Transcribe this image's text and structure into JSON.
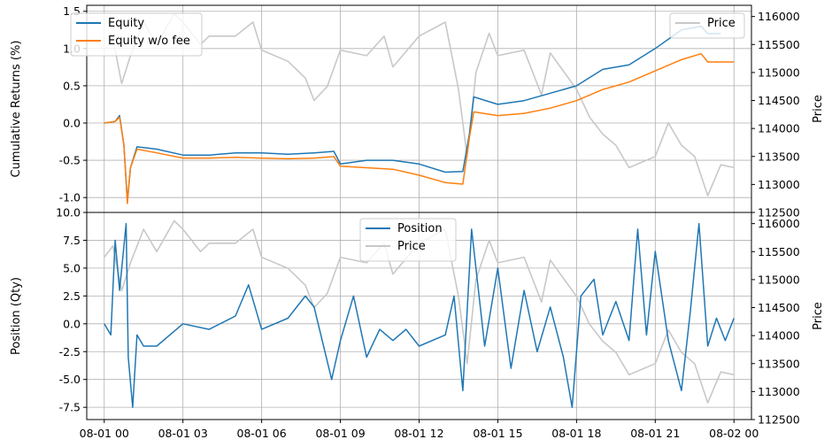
{
  "colors": {
    "equity": "#1f77b4",
    "equity_nofee": "#ff7f0e",
    "position": "#1f77b4",
    "price": "#c8c8c8",
    "grid": "#b0b0b0"
  },
  "chart_data": [
    {
      "type": "line",
      "ylabel": "Cumulative Returns (%)",
      "y2label": "Price",
      "xlim": [
        "07-31 23:20",
        "08-02 00:40"
      ],
      "ylim": [
        -1.2,
        1.58
      ],
      "y2lim": [
        112500,
        116200
      ],
      "yticks": [
        -1.0,
        -0.5,
        0.0,
        0.5,
        1.0,
        1.5
      ],
      "y2ticks": [
        112500,
        113000,
        113500,
        114000,
        114500,
        115000,
        115500,
        116000
      ],
      "grid": true,
      "legend": "upper-left",
      "legend2": "upper-right",
      "series": [
        {
          "name": "Equity",
          "axis": "left",
          "color": "#1f77b4",
          "points": [
            [
              "08-01 00:00",
              0.0
            ],
            [
              "08-01 00:25",
              0.02
            ],
            [
              "08-01 00:35",
              0.1
            ],
            [
              "08-01 00:45",
              -0.3
            ],
            [
              "08-01 00:53",
              -1.05
            ],
            [
              "08-01 01:00",
              -0.6
            ],
            [
              "08-01 01:15",
              -0.32
            ],
            [
              "08-01 02:00",
              -0.35
            ],
            [
              "08-01 03:00",
              -0.43
            ],
            [
              "08-01 04:00",
              -0.43
            ],
            [
              "08-01 05:00",
              -0.4
            ],
            [
              "08-01 06:00",
              -0.4
            ],
            [
              "08-01 07:00",
              -0.42
            ],
            [
              "08-01 08:00",
              -0.4
            ],
            [
              "08-01 08:45",
              -0.38
            ],
            [
              "08-01 09:00",
              -0.55
            ],
            [
              "08-01 10:00",
              -0.5
            ],
            [
              "08-01 11:00",
              -0.5
            ],
            [
              "08-01 12:00",
              -0.55
            ],
            [
              "08-01 13:00",
              -0.66
            ],
            [
              "08-01 13:40",
              -0.65
            ],
            [
              "08-01 13:55",
              -0.15
            ],
            [
              "08-01 14:05",
              0.35
            ],
            [
              "08-01 15:00",
              0.25
            ],
            [
              "08-01 16:00",
              0.3
            ],
            [
              "08-01 17:00",
              0.4
            ],
            [
              "08-01 18:00",
              0.5
            ],
            [
              "08-01 19:00",
              0.72
            ],
            [
              "08-01 20:00",
              0.78
            ],
            [
              "08-01 21:00",
              1.0
            ],
            [
              "08-01 22:00",
              1.25
            ],
            [
              "08-01 22:45",
              1.3
            ],
            [
              "08-01 23:00",
              1.2
            ],
            [
              "08-01 23:30",
              1.2
            ]
          ]
        },
        {
          "name": "Equity w/o fee",
          "axis": "left",
          "color": "#ff7f0e",
          "points": [
            [
              "08-01 00:00",
              0.0
            ],
            [
              "08-01 00:25",
              0.02
            ],
            [
              "08-01 00:35",
              0.08
            ],
            [
              "08-01 00:45",
              -0.3
            ],
            [
              "08-01 00:53",
              -1.08
            ],
            [
              "08-01 01:00",
              -0.6
            ],
            [
              "08-01 01:15",
              -0.35
            ],
            [
              "08-01 02:00",
              -0.4
            ],
            [
              "08-01 03:00",
              -0.47
            ],
            [
              "08-01 04:00",
              -0.47
            ],
            [
              "08-01 05:00",
              -0.46
            ],
            [
              "08-01 06:00",
              -0.47
            ],
            [
              "08-01 07:00",
              -0.48
            ],
            [
              "08-01 08:00",
              -0.47
            ],
            [
              "08-01 08:45",
              -0.45
            ],
            [
              "08-01 09:00",
              -0.58
            ],
            [
              "08-01 10:00",
              -0.6
            ],
            [
              "08-01 11:00",
              -0.62
            ],
            [
              "08-01 12:00",
              -0.7
            ],
            [
              "08-01 13:00",
              -0.8
            ],
            [
              "08-01 13:40",
              -0.82
            ],
            [
              "08-01 13:55",
              -0.2
            ],
            [
              "08-01 14:05",
              0.15
            ],
            [
              "08-01 15:00",
              0.1
            ],
            [
              "08-01 16:00",
              0.13
            ],
            [
              "08-01 17:00",
              0.2
            ],
            [
              "08-01 18:00",
              0.3
            ],
            [
              "08-01 19:00",
              0.45
            ],
            [
              "08-01 20:00",
              0.55
            ],
            [
              "08-01 21:00",
              0.7
            ],
            [
              "08-01 22:00",
              0.85
            ],
            [
              "08-01 22:45",
              0.93
            ],
            [
              "08-01 23:00",
              0.82
            ],
            [
              "08-01 23:30",
              0.82
            ],
            [
              "08-02 00:00",
              0.82
            ]
          ]
        },
        {
          "name": "Price",
          "axis": "right",
          "color": "#c8c8c8",
          "points": [
            [
              "08-01 00:00",
              115400
            ],
            [
              "08-01 00:20",
              115600
            ],
            [
              "08-01 00:40",
              114800
            ],
            [
              "08-01 01:00",
              115300
            ],
            [
              "08-01 01:30",
              115900
            ],
            [
              "08-01 02:00",
              115500
            ],
            [
              "08-01 02:40",
              116050
            ],
            [
              "08-01 03:00",
              115900
            ],
            [
              "08-01 03:40",
              115500
            ],
            [
              "08-01 04:00",
              115650
            ],
            [
              "08-01 05:00",
              115650
            ],
            [
              "08-01 05:40",
              115900
            ],
            [
              "08-01 06:00",
              115400
            ],
            [
              "08-01 07:00",
              115200
            ],
            [
              "08-01 07:40",
              114900
            ],
            [
              "08-01 08:00",
              114500
            ],
            [
              "08-01 08:30",
              114750
            ],
            [
              "08-01 09:00",
              115400
            ],
            [
              "08-01 10:00",
              115300
            ],
            [
              "08-01 10:40",
              115650
            ],
            [
              "08-01 11:00",
              115100
            ],
            [
              "08-01 12:00",
              115650
            ],
            [
              "08-01 13:00",
              115900
            ],
            [
              "08-01 13:30",
              114700
            ],
            [
              "08-01 13:50",
              113500
            ],
            [
              "08-01 14:10",
              115000
            ],
            [
              "08-01 14:40",
              115700
            ],
            [
              "08-01 15:00",
              115300
            ],
            [
              "08-01 16:00",
              115400
            ],
            [
              "08-01 16:40",
              114600
            ],
            [
              "08-01 17:00",
              115350
            ],
            [
              "08-01 18:00",
              114700
            ],
            [
              "08-01 18:30",
              114200
            ],
            [
              "08-01 19:00",
              113900
            ],
            [
              "08-01 19:30",
              113700
            ],
            [
              "08-01 20:00",
              113300
            ],
            [
              "08-01 21:00",
              113500
            ],
            [
              "08-01 21:30",
              114100
            ],
            [
              "08-01 22:00",
              113700
            ],
            [
              "08-01 22:30",
              113500
            ],
            [
              "08-01 23:00",
              112800
            ],
            [
              "08-01 23:30",
              113350
            ],
            [
              "08-02 00:00",
              113300
            ]
          ]
        }
      ]
    },
    {
      "type": "line",
      "ylabel": "Position (Qty)",
      "y2label": "Price",
      "xlabel": "",
      "xlim": [
        "07-31 23:20",
        "08-02 00:40"
      ],
      "xticks": [
        "08-01 00",
        "08-01 03",
        "08-01 06",
        "08-01 09",
        "08-01 12",
        "08-01 15",
        "08-01 18",
        "08-01 21",
        "08-02 00"
      ],
      "ylim": [
        -8.6,
        10.0
      ],
      "y2lim": [
        112500,
        116200
      ],
      "yticks": [
        -7.5,
        -5.0,
        -2.5,
        0.0,
        2.5,
        5.0,
        7.5,
        10.0
      ],
      "y2ticks": [
        112500,
        113000,
        113500,
        114000,
        114500,
        115000,
        115500,
        116000
      ],
      "grid": true,
      "legend": "upper-center",
      "series": [
        {
          "name": "Position",
          "axis": "left",
          "color": "#1f77b4",
          "points": [
            [
              "08-01 00:00",
              0.0
            ],
            [
              "08-01 00:15",
              -1.0
            ],
            [
              "08-01 00:25",
              7.5
            ],
            [
              "08-01 00:35",
              3.0
            ],
            [
              "08-01 00:50",
              9.0
            ],
            [
              "08-01 00:55",
              -3.0
            ],
            [
              "08-01 01:05",
              -7.5
            ],
            [
              "08-01 01:15",
              -1.0
            ],
            [
              "08-01 01:30",
              -2.0
            ],
            [
              "08-01 02:00",
              -2.0
            ],
            [
              "08-01 03:00",
              0.0
            ],
            [
              "08-01 04:00",
              -0.5
            ],
            [
              "08-01 05:00",
              0.7
            ],
            [
              "08-01 05:30",
              3.5
            ],
            [
              "08-01 06:00",
              -0.5
            ],
            [
              "08-01 07:00",
              0.5
            ],
            [
              "08-01 07:40",
              2.5
            ],
            [
              "08-01 08:00",
              1.5
            ],
            [
              "08-01 08:40",
              -5.0
            ],
            [
              "08-01 09:00",
              -1.5
            ],
            [
              "08-01 09:30",
              2.5
            ],
            [
              "08-01 10:00",
              -3.0
            ],
            [
              "08-01 10:30",
              -0.5
            ],
            [
              "08-01 11:00",
              -1.5
            ],
            [
              "08-01 11:30",
              -0.5
            ],
            [
              "08-01 12:00",
              -2.0
            ],
            [
              "08-01 13:00",
              -1.0
            ],
            [
              "08-01 13:20",
              2.5
            ],
            [
              "08-01 13:40",
              -6.0
            ],
            [
              "08-01 14:00",
              8.5
            ],
            [
              "08-01 14:30",
              -2.0
            ],
            [
              "08-01 15:00",
              5.0
            ],
            [
              "08-01 15:30",
              -4.0
            ],
            [
              "08-01 16:00",
              3.0
            ],
            [
              "08-01 16:30",
              -2.5
            ],
            [
              "08-01 17:00",
              1.5
            ],
            [
              "08-01 17:30",
              -3.0
            ],
            [
              "08-01 17:50",
              -7.5
            ],
            [
              "08-01 18:10",
              2.5
            ],
            [
              "08-01 18:40",
              4.0
            ],
            [
              "08-01 19:00",
              -1.0
            ],
            [
              "08-01 19:30",
              2.0
            ],
            [
              "08-01 20:00",
              -1.5
            ],
            [
              "08-01 20:20",
              8.5
            ],
            [
              "08-01 20:40",
              -1.0
            ],
            [
              "08-01 21:00",
              6.5
            ],
            [
              "08-01 21:30",
              -1.5
            ],
            [
              "08-01 22:00",
              -6.0
            ],
            [
              "08-01 22:20",
              1.0
            ],
            [
              "08-01 22:40",
              9.0
            ],
            [
              "08-01 23:00",
              -2.0
            ],
            [
              "08-01 23:20",
              0.5
            ],
            [
              "08-01 23:40",
              -1.5
            ],
            [
              "08-02 00:00",
              0.5
            ]
          ]
        },
        {
          "name": "Price",
          "axis": "right",
          "color": "#c8c8c8",
          "points": [
            [
              "08-01 00:00",
              115400
            ],
            [
              "08-01 00:20",
              115600
            ],
            [
              "08-01 00:40",
              114800
            ],
            [
              "08-01 01:00",
              115300
            ],
            [
              "08-01 01:30",
              115900
            ],
            [
              "08-01 02:00",
              115500
            ],
            [
              "08-01 02:40",
              116050
            ],
            [
              "08-01 03:00",
              115900
            ],
            [
              "08-01 03:40",
              115500
            ],
            [
              "08-01 04:00",
              115650
            ],
            [
              "08-01 05:00",
              115650
            ],
            [
              "08-01 05:40",
              115900
            ],
            [
              "08-01 06:00",
              115400
            ],
            [
              "08-01 07:00",
              115200
            ],
            [
              "08-01 07:40",
              114900
            ],
            [
              "08-01 08:00",
              114500
            ],
            [
              "08-01 08:30",
              114750
            ],
            [
              "08-01 09:00",
              115400
            ],
            [
              "08-01 10:00",
              115300
            ],
            [
              "08-01 10:40",
              115650
            ],
            [
              "08-01 11:00",
              115100
            ],
            [
              "08-01 12:00",
              115650
            ],
            [
              "08-01 13:00",
              115900
            ],
            [
              "08-01 13:30",
              114700
            ],
            [
              "08-01 13:50",
              113500
            ],
            [
              "08-01 14:10",
              115000
            ],
            [
              "08-01 14:40",
              115700
            ],
            [
              "08-01 15:00",
              115300
            ],
            [
              "08-01 16:00",
              115400
            ],
            [
              "08-01 16:40",
              114600
            ],
            [
              "08-01 17:00",
              115350
            ],
            [
              "08-01 18:00",
              114700
            ],
            [
              "08-01 18:30",
              114200
            ],
            [
              "08-01 19:00",
              113900
            ],
            [
              "08-01 19:30",
              113700
            ],
            [
              "08-01 20:00",
              113300
            ],
            [
              "08-01 21:00",
              113500
            ],
            [
              "08-01 21:30",
              114100
            ],
            [
              "08-01 22:00",
              113700
            ],
            [
              "08-01 22:30",
              113500
            ],
            [
              "08-01 23:00",
              112800
            ],
            [
              "08-01 23:30",
              113350
            ],
            [
              "08-02 00:00",
              113300
            ]
          ]
        }
      ]
    }
  ]
}
